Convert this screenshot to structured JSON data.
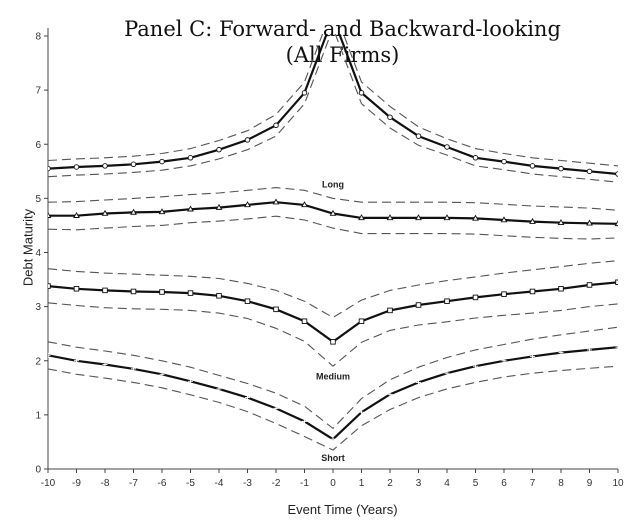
{
  "chart_data": {
    "type": "line",
    "title_line1": "Panel C: Forward- and Backward-looking",
    "title_line2": "(All Firms)",
    "xlabel": "Event Time (Years)",
    "ylabel": "Debt Maturity",
    "x": [
      -10,
      -9,
      -8,
      -7,
      -6,
      -5,
      -4,
      -3,
      -2,
      -1,
      0,
      1,
      2,
      3,
      4,
      5,
      6,
      7,
      8,
      9,
      10
    ],
    "xlim": [
      -10,
      10
    ],
    "ylim": [
      0,
      8
    ],
    "xticks": [
      -10,
      -9,
      -8,
      -7,
      -6,
      -5,
      -4,
      -3,
      -2,
      -1,
      0,
      1,
      2,
      3,
      4,
      5,
      6,
      7,
      8,
      9,
      10
    ],
    "yticks": [
      0,
      1,
      2,
      3,
      4,
      5,
      6,
      7,
      8
    ],
    "grid": false,
    "series": [
      {
        "name": "Long",
        "marker": "circle",
        "values": [
          5.55,
          5.58,
          5.6,
          5.63,
          5.68,
          5.75,
          5.9,
          6.08,
          6.35,
          6.95,
          8.35,
          6.95,
          6.5,
          6.15,
          5.95,
          5.75,
          5.68,
          5.6,
          5.55,
          5.5,
          5.45
        ],
        "ci_upper": [
          5.7,
          5.73,
          5.75,
          5.78,
          5.83,
          5.92,
          6.07,
          6.25,
          6.55,
          7.15,
          8.55,
          7.15,
          6.7,
          6.32,
          6.1,
          5.92,
          5.83,
          5.75,
          5.7,
          5.65,
          5.6
        ],
        "ci_lower": [
          5.4,
          5.43,
          5.45,
          5.48,
          5.52,
          5.6,
          5.73,
          5.9,
          6.15,
          6.75,
          8.15,
          6.75,
          6.3,
          5.98,
          5.8,
          5.6,
          5.53,
          5.45,
          5.4,
          5.35,
          5.3
        ]
      },
      {
        "name": "",
        "marker": "triangle",
        "values": [
          4.68,
          4.68,
          4.72,
          4.74,
          4.75,
          4.8,
          4.83,
          4.88,
          4.93,
          4.88,
          4.72,
          4.64,
          4.64,
          4.64,
          4.64,
          4.63,
          4.6,
          4.57,
          4.55,
          4.54,
          4.53
        ],
        "ci_upper": [
          4.93,
          4.94,
          4.97,
          5.0,
          5.03,
          5.07,
          5.1,
          5.15,
          5.2,
          5.15,
          5.0,
          4.93,
          4.93,
          4.93,
          4.93,
          4.92,
          4.89,
          4.86,
          4.84,
          4.82,
          4.78
        ],
        "ci_lower": [
          4.43,
          4.42,
          4.45,
          4.48,
          4.5,
          4.55,
          4.58,
          4.62,
          4.67,
          4.6,
          4.45,
          4.35,
          4.35,
          4.35,
          4.35,
          4.34,
          4.31,
          4.28,
          4.26,
          4.25,
          4.27
        ]
      },
      {
        "name": "Medium",
        "marker": "square",
        "values": [
          3.38,
          3.33,
          3.3,
          3.28,
          3.27,
          3.25,
          3.2,
          3.1,
          2.95,
          2.73,
          2.35,
          2.73,
          2.93,
          3.03,
          3.1,
          3.17,
          3.23,
          3.28,
          3.33,
          3.4,
          3.45
        ],
        "ci_upper": [
          3.7,
          3.65,
          3.62,
          3.6,
          3.58,
          3.56,
          3.52,
          3.43,
          3.3,
          3.1,
          2.8,
          3.12,
          3.3,
          3.4,
          3.48,
          3.55,
          3.62,
          3.68,
          3.74,
          3.8,
          3.85
        ],
        "ci_lower": [
          3.07,
          3.02,
          2.98,
          2.96,
          2.95,
          2.93,
          2.88,
          2.78,
          2.6,
          2.36,
          1.9,
          2.34,
          2.56,
          2.66,
          2.72,
          2.79,
          2.84,
          2.88,
          2.93,
          3.0,
          3.05
        ]
      },
      {
        "name": "Short",
        "marker": "plus",
        "values": [
          2.1,
          2.0,
          1.93,
          1.85,
          1.75,
          1.62,
          1.48,
          1.32,
          1.12,
          0.88,
          0.55,
          1.05,
          1.38,
          1.6,
          1.77,
          1.9,
          2.0,
          2.08,
          2.15,
          2.2,
          2.25
        ],
        "ci_upper": [
          2.35,
          2.25,
          2.18,
          2.1,
          2.0,
          1.88,
          1.73,
          1.58,
          1.4,
          1.16,
          0.75,
          1.3,
          1.65,
          1.88,
          2.06,
          2.2,
          2.3,
          2.4,
          2.48,
          2.55,
          2.62
        ],
        "ci_lower": [
          1.85,
          1.75,
          1.68,
          1.6,
          1.5,
          1.37,
          1.23,
          1.06,
          0.84,
          0.6,
          0.35,
          0.8,
          1.1,
          1.32,
          1.48,
          1.6,
          1.7,
          1.77,
          1.82,
          1.86,
          1.9
        ]
      }
    ],
    "annotations": [
      {
        "text": "Long",
        "x": 0,
        "y": 5.2
      },
      {
        "text": "Medium",
        "x": 0,
        "y": 1.65
      },
      {
        "text": "Short",
        "x": 0,
        "y": 0.15
      }
    ],
    "colors": {
      "line": "#111111",
      "ci": "#555555",
      "axis": "#444444"
    }
  }
}
